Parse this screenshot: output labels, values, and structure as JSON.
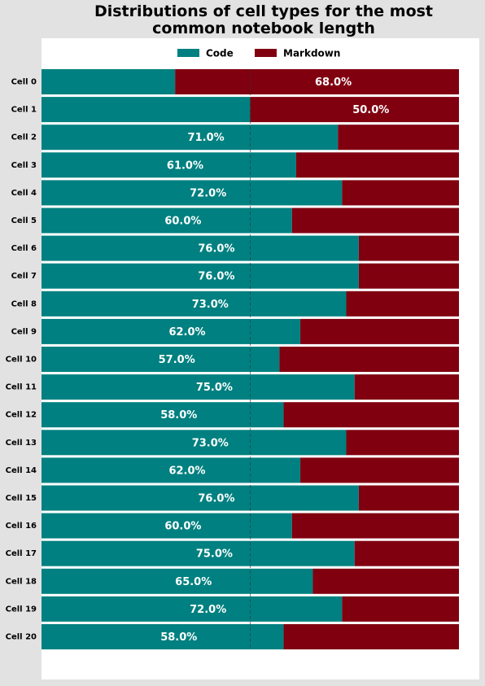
{
  "chart_data": {
    "type": "stacked_barh",
    "title": "Distributions of cell types for the most common notebook length",
    "categories": [
      "Cell 0",
      "Cell 1",
      "Cell 2",
      "Cell 3",
      "Cell 4",
      "Cell 5",
      "Cell 6",
      "Cell 7",
      "Cell 8",
      "Cell 9",
      "Cell 10",
      "Cell 11",
      "Cell 12",
      "Cell 13",
      "Cell 14",
      "Cell 15",
      "Cell 16",
      "Cell 17",
      "Cell 18",
      "Cell 19",
      "Cell 20"
    ],
    "series": [
      {
        "name": "Code",
        "color": "#008080",
        "values": [
          32,
          50,
          71,
          61,
          72,
          60,
          76,
          76,
          73,
          62,
          57,
          75,
          58,
          73,
          62,
          76,
          60,
          75,
          65,
          72,
          58
        ],
        "value_labels": [
          null,
          null,
          "71.0%",
          "61.0%",
          "72.0%",
          "60.0%",
          "76.0%",
          "76.0%",
          "73.0%",
          "62.0%",
          "57.0%",
          "75.0%",
          "58.0%",
          "73.0%",
          "62.0%",
          "76.0%",
          "60.0%",
          "75.0%",
          "65.0%",
          "72.0%",
          "58.0%"
        ]
      },
      {
        "name": "Markdown",
        "color": "#800010",
        "values": [
          68,
          50,
          29,
          39,
          28,
          40,
          24,
          24,
          27,
          38,
          43,
          25,
          42,
          27,
          38,
          24,
          40,
          25,
          35,
          28,
          42
        ],
        "value_labels": [
          "68.0%",
          "50.0%",
          null,
          null,
          null,
          null,
          null,
          null,
          null,
          null,
          null,
          null,
          null,
          null,
          null,
          null,
          null,
          null,
          null,
          null,
          null
        ]
      }
    ],
    "xlim": [
      0,
      100
    ],
    "reference_line": 50,
    "legend": "top"
  }
}
